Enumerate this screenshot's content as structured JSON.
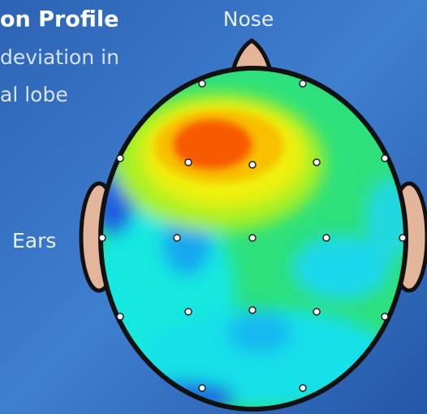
{
  "header": {
    "title": "on Profile",
    "lines": [
      "deviation in",
      "al lobe"
    ]
  },
  "labels": {
    "nose": "Nose",
    "ears": "Ears"
  }
}
